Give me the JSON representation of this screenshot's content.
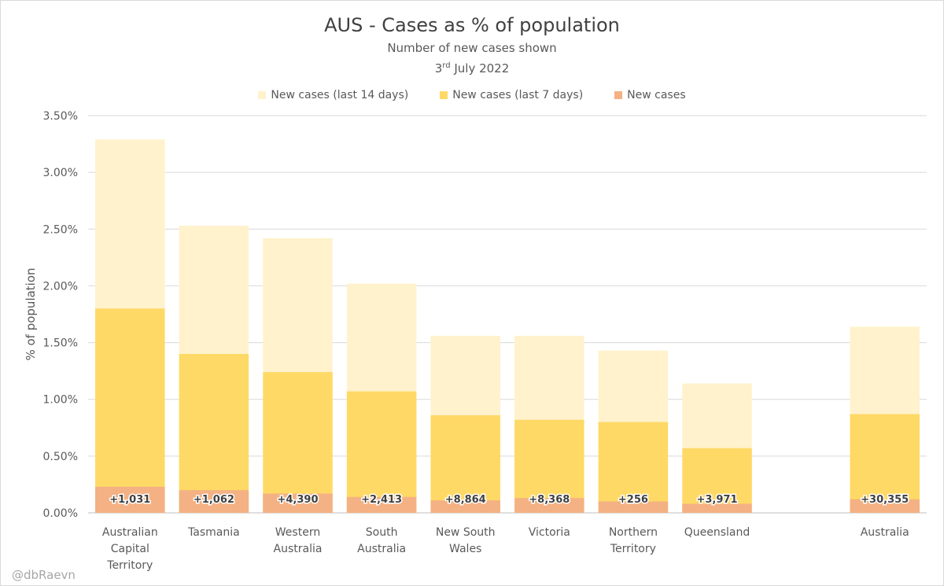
{
  "chart_data": {
    "type": "bar",
    "stacked": "overlay",
    "title": "AUS - Cases as % of population",
    "subtitle": "Number of new cases shown",
    "date": {
      "day": "3",
      "suffix": "rd",
      "rest": "July 2022"
    },
    "ylabel": "% of population",
    "xlabel": "",
    "ylim": [
      0,
      3.5
    ],
    "yticks": [
      "0.00%",
      "0.50%",
      "1.00%",
      "1.50%",
      "2.00%",
      "2.50%",
      "3.00%",
      "3.50%"
    ],
    "grid": true,
    "legend_position": "top",
    "categories": [
      [
        "Australian",
        "Capital",
        "Territory"
      ],
      [
        "Tasmania"
      ],
      [
        "Western",
        "Australia"
      ],
      [
        "South",
        "Australia"
      ],
      [
        "New South",
        "Wales"
      ],
      [
        "Victoria"
      ],
      [
        "Northern",
        "Territory"
      ],
      [
        "Queensland"
      ],
      [
        ""
      ],
      [
        "Australia"
      ]
    ],
    "series": [
      {
        "name": "New cases (last 14 days)",
        "color": "#FFF2CC",
        "values": [
          3.29,
          2.53,
          2.42,
          2.02,
          1.56,
          1.56,
          1.43,
          1.14,
          null,
          1.64
        ]
      },
      {
        "name": "New cases (last 7 days)",
        "color": "#FFD966",
        "values": [
          1.8,
          1.4,
          1.24,
          1.07,
          0.86,
          0.82,
          0.8,
          0.57,
          null,
          0.87
        ]
      },
      {
        "name": "New cases",
        "color": "#F4B183",
        "values": [
          0.23,
          0.2,
          0.17,
          0.14,
          0.11,
          0.13,
          0.1,
          0.08,
          null,
          0.12
        ]
      }
    ],
    "data_labels": [
      "+1,031",
      "+1,062",
      "+4,390",
      "+2,413",
      "+8,864",
      "+8,368",
      "+256",
      "+3,971",
      "",
      "+30,355"
    ]
  },
  "credit": "@dbRaevn"
}
